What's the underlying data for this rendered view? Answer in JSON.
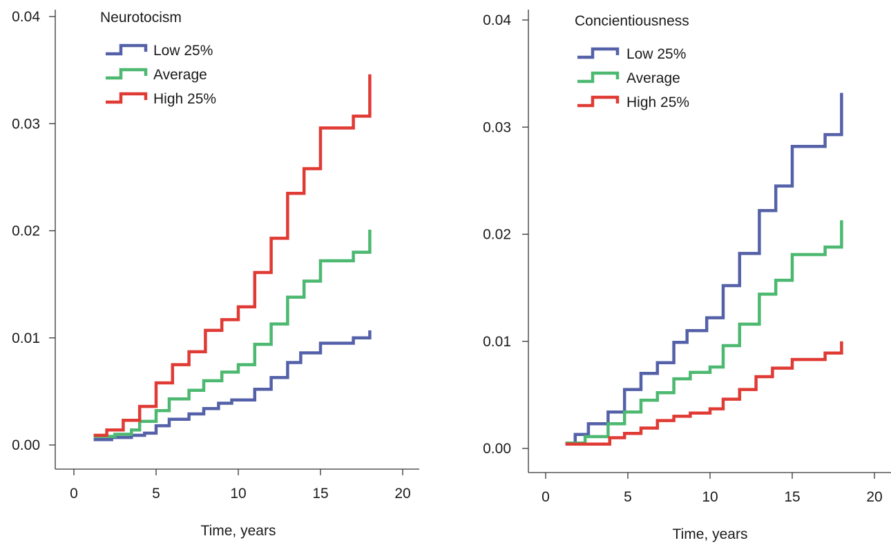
{
  "chart_data": [
    {
      "type": "line",
      "step": true,
      "legend_title": "Neurotocism",
      "xlabel": "Time, years",
      "ylabel": "",
      "xlim": [
        0,
        20
      ],
      "ylim": [
        0,
        0.04
      ],
      "x_ticks": [
        0,
        5,
        10,
        15,
        20
      ],
      "x_tick_labels": [
        "0",
        "5",
        "10",
        "15",
        "20"
      ],
      "y_ticks": [
        0,
        0.01,
        0.02,
        0.03,
        0.04
      ],
      "y_tick_labels": [
        "0.00",
        "0.01",
        "0.02",
        "0.03",
        "0.04"
      ],
      "grid": false,
      "legend_position": "top-left",
      "series": [
        {
          "name": "Low 25%",
          "color": "#5461a8",
          "x": [
            1.2,
            2.3,
            3.5,
            4.3,
            5.0,
            5.8,
            7.0,
            7.9,
            8.8,
            9.6,
            11.0,
            12.0,
            13.0,
            13.8,
            15.0,
            17.0,
            18.0
          ],
          "y": [
            0.0005,
            0.0007,
            0.0009,
            0.0011,
            0.0018,
            0.0024,
            0.0029,
            0.0034,
            0.0039,
            0.0042,
            0.0052,
            0.0063,
            0.0077,
            0.0086,
            0.0095,
            0.01,
            0.0107
          ]
        },
        {
          "name": "Average",
          "color": "#4cb870",
          "x": [
            1.2,
            2.5,
            3.5,
            4.0,
            5.0,
            5.8,
            7.0,
            7.9,
            9.0,
            10.0,
            11.0,
            12.0,
            13.0,
            14.0,
            15.0,
            17.0,
            18.0
          ],
          "y": [
            0.0008,
            0.001,
            0.0014,
            0.0022,
            0.0032,
            0.0043,
            0.0051,
            0.006,
            0.0068,
            0.0075,
            0.0094,
            0.0113,
            0.0138,
            0.0153,
            0.0172,
            0.018,
            0.0201
          ]
        },
        {
          "name": "High 25%",
          "color": "#e03a34",
          "x": [
            1.2,
            2.0,
            3.0,
            4.0,
            5.0,
            6.0,
            7.0,
            8.0,
            9.0,
            10.0,
            11.0,
            12.0,
            13.0,
            14.0,
            15.0,
            17.0,
            18.0
          ],
          "y": [
            0.0009,
            0.0014,
            0.0023,
            0.0036,
            0.0058,
            0.0075,
            0.0087,
            0.0107,
            0.0117,
            0.0129,
            0.0161,
            0.0193,
            0.0235,
            0.0258,
            0.0296,
            0.0307,
            0.0346
          ]
        }
      ]
    },
    {
      "type": "line",
      "step": true,
      "legend_title": "Concientiousness",
      "xlabel": "Time, years",
      "ylabel": "",
      "xlim": [
        0,
        20
      ],
      "ylim": [
        0,
        0.04
      ],
      "x_ticks": [
        0,
        5,
        10,
        15,
        20
      ],
      "x_tick_labels": [
        "0",
        "5",
        "10",
        "15",
        "20"
      ],
      "y_ticks": [
        0,
        0.01,
        0.02,
        0.03,
        0.04
      ],
      "y_tick_labels": [
        "0.00",
        "0.01",
        "0.02",
        "0.03",
        "0.04"
      ],
      "grid": false,
      "legend_position": "top-left",
      "series": [
        {
          "name": "Low 25%",
          "color": "#5461a8",
          "x": [
            1.2,
            1.8,
            2.6,
            3.8,
            4.8,
            5.8,
            6.8,
            7.8,
            8.6,
            9.8,
            10.8,
            11.8,
            13.0,
            14.0,
            15.0,
            17.0,
            18.0
          ],
          "y": [
            0.0005,
            0.0013,
            0.0023,
            0.0034,
            0.0055,
            0.007,
            0.008,
            0.0099,
            0.011,
            0.0122,
            0.0152,
            0.0182,
            0.0222,
            0.0245,
            0.0282,
            0.0293,
            0.0332
          ]
        },
        {
          "name": "Average",
          "color": "#4cb870",
          "x": [
            1.2,
            2.4,
            3.8,
            4.8,
            5.8,
            6.8,
            7.8,
            8.8,
            10.0,
            10.8,
            11.8,
            13.0,
            14.0,
            15.0,
            17.0,
            18.0
          ],
          "y": [
            0.0005,
            0.0011,
            0.0023,
            0.0034,
            0.0045,
            0.0052,
            0.0065,
            0.0071,
            0.0076,
            0.0096,
            0.0116,
            0.0144,
            0.0157,
            0.0181,
            0.0188,
            0.0213
          ]
        },
        {
          "name": "High 25%",
          "color": "#e03a34",
          "x": [
            1.2,
            3.9,
            4.8,
            5.8,
            6.8,
            7.8,
            8.8,
            10.0,
            10.8,
            11.8,
            12.8,
            13.8,
            15.0,
            17.0,
            18.0
          ],
          "y": [
            0.0004,
            0.001,
            0.0014,
            0.0019,
            0.0026,
            0.003,
            0.0033,
            0.0037,
            0.0046,
            0.0055,
            0.0067,
            0.0075,
            0.0083,
            0.0089,
            0.01
          ]
        }
      ]
    }
  ]
}
